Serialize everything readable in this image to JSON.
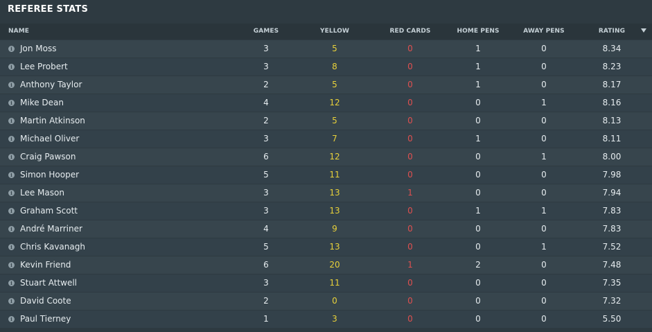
{
  "title": "REFEREE STATS",
  "columns": {
    "name": "NAME",
    "games": "GAMES",
    "yellow": "YELLOW CARDS",
    "red": "RED CARDS",
    "home_pens": "HOME PENS",
    "away_pens": "AWAY PENS",
    "rating": "RATING"
  },
  "sort": {
    "column": "rating",
    "direction": "descending"
  },
  "colors": {
    "yellow_cards": "#e8d13a",
    "red_cards": "#e05050"
  },
  "rows": [
    {
      "name": "Jon Moss",
      "games": "3",
      "yellow": "5",
      "red": "0",
      "home": "1",
      "away": "0",
      "rating": "8.34"
    },
    {
      "name": "Lee Probert",
      "games": "3",
      "yellow": "8",
      "red": "0",
      "home": "1",
      "away": "0",
      "rating": "8.23"
    },
    {
      "name": "Anthony Taylor",
      "games": "2",
      "yellow": "5",
      "red": "0",
      "home": "1",
      "away": "0",
      "rating": "8.17"
    },
    {
      "name": "Mike Dean",
      "games": "4",
      "yellow": "12",
      "red": "0",
      "home": "0",
      "away": "1",
      "rating": "8.16"
    },
    {
      "name": "Martin Atkinson",
      "games": "2",
      "yellow": "5",
      "red": "0",
      "home": "0",
      "away": "0",
      "rating": "8.13"
    },
    {
      "name": "Michael Oliver",
      "games": "3",
      "yellow": "7",
      "red": "0",
      "home": "1",
      "away": "0",
      "rating": "8.11"
    },
    {
      "name": "Craig Pawson",
      "games": "6",
      "yellow": "12",
      "red": "0",
      "home": "0",
      "away": "1",
      "rating": "8.00"
    },
    {
      "name": "Simon Hooper",
      "games": "5",
      "yellow": "11",
      "red": "0",
      "home": "0",
      "away": "0",
      "rating": "7.98"
    },
    {
      "name": "Lee Mason",
      "games": "3",
      "yellow": "13",
      "red": "1",
      "home": "0",
      "away": "0",
      "rating": "7.94"
    },
    {
      "name": "Graham Scott",
      "games": "3",
      "yellow": "13",
      "red": "0",
      "home": "1",
      "away": "1",
      "rating": "7.83"
    },
    {
      "name": "André Marriner",
      "games": "4",
      "yellow": "9",
      "red": "0",
      "home": "0",
      "away": "0",
      "rating": "7.83"
    },
    {
      "name": "Chris Kavanagh",
      "games": "5",
      "yellow": "13",
      "red": "0",
      "home": "0",
      "away": "1",
      "rating": "7.52"
    },
    {
      "name": "Kevin Friend",
      "games": "6",
      "yellow": "20",
      "red": "1",
      "home": "2",
      "away": "0",
      "rating": "7.48"
    },
    {
      "name": "Stuart Attwell",
      "games": "3",
      "yellow": "11",
      "red": "0",
      "home": "0",
      "away": "0",
      "rating": "7.35"
    },
    {
      "name": "David Coote",
      "games": "2",
      "yellow": "0",
      "red": "0",
      "home": "0",
      "away": "0",
      "rating": "7.32"
    },
    {
      "name": "Paul Tierney",
      "games": "1",
      "yellow": "3",
      "red": "0",
      "home": "0",
      "away": "0",
      "rating": "5.50"
    }
  ]
}
